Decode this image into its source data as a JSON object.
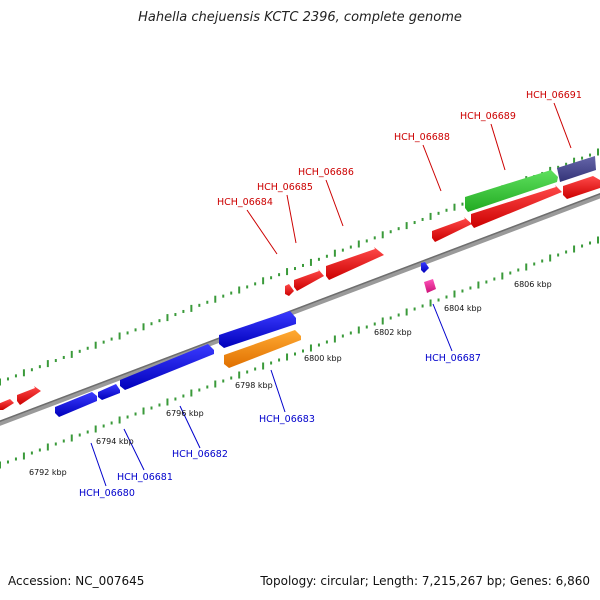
{
  "title": "Hahella chejuensis KCTC 2396, complete genome",
  "footer": {
    "accession": "Accession: NC_007645",
    "topology": "Topology: circular; Length: 7,215,267 bp; Genes: 6,860"
  },
  "colors": {
    "forward_gene": "#ee0000",
    "reverse_gene": "#0000ee",
    "backbone": "#808080",
    "tick": "#3a9a3a",
    "label_forward": "#cc0000",
    "label_reverse": "#0000cc"
  },
  "scale_labels": [
    "6792 kbp",
    "6794 kbp",
    "6796 kbp",
    "6798 kbp",
    "6800 kbp",
    "6802 kbp",
    "6804 kbp",
    "6806 kbp"
  ],
  "genes_forward": [
    {
      "label": "HCH_06684",
      "color": "#ee0000"
    },
    {
      "label": "HCH_06685",
      "color": "#ee0000"
    },
    {
      "label": "HCH_06686",
      "color": "#ee0000"
    },
    {
      "label": "HCH_06688",
      "color": "#ee0000"
    },
    {
      "label": "HCH_06689",
      "color": "#33cc33"
    },
    {
      "label": "HCH_06691",
      "color": "#444488"
    }
  ],
  "genes_reverse": [
    {
      "label": "HCH_06680",
      "color": "#0000ee"
    },
    {
      "label": "HCH_06681",
      "color": "#0000ee"
    },
    {
      "label": "HCH_06682",
      "color": "#0000ee"
    },
    {
      "label": "HCH_06683",
      "color": "#ff8c00"
    },
    {
      "label": "HCH_06687",
      "color": "#ee2299"
    }
  ]
}
